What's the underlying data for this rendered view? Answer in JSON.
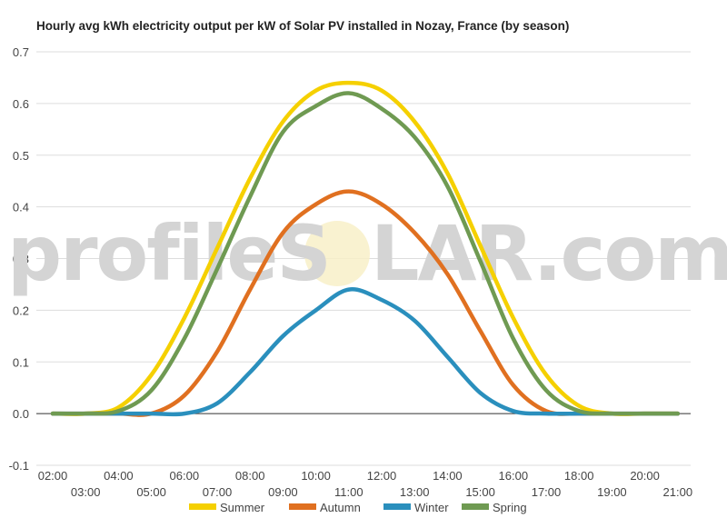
{
  "chart_data": {
    "type": "line",
    "title": "Hourly avg kWh electricity output per kW of Solar PV installed in Nozay, France (by season)",
    "watermark": {
      "left": "profileS",
      "right": "LAR.com"
    },
    "xlabel": "",
    "ylabel": "",
    "ylim": [
      -0.1,
      0.7
    ],
    "yticks": [
      "-0.1",
      "0.0",
      "0.1",
      "0.2",
      "0.3",
      "0.4",
      "0.5",
      "0.6",
      "0.7"
    ],
    "x_tick_labels": [
      "02:00",
      "03:00",
      "04:00",
      "05:00",
      "06:00",
      "07:00",
      "08:00",
      "09:00",
      "10:00",
      "11:00",
      "12:00",
      "13:00",
      "14:00",
      "15:00",
      "16:00",
      "17:00",
      "18:00",
      "19:00",
      "20:00",
      "21:00"
    ],
    "grid": true,
    "legend_position": "bottom",
    "series": [
      {
        "name": "Summer",
        "color": "#f5d000",
        "values": [
          0,
          0,
          0.012,
          0.075,
          0.185,
          0.32,
          0.455,
          0.565,
          0.625,
          0.64,
          0.625,
          0.565,
          0.465,
          0.325,
          0.185,
          0.075,
          0.015,
          0,
          0,
          0
        ]
      },
      {
        "name": "Autumn",
        "color": "#e07020",
        "values": [
          0,
          0,
          0,
          0,
          0.035,
          0.12,
          0.24,
          0.35,
          0.405,
          0.43,
          0.405,
          0.35,
          0.27,
          0.16,
          0.055,
          0.005,
          0,
          0,
          0,
          0
        ]
      },
      {
        "name": "Winter",
        "color": "#2a8fbd",
        "values": [
          0,
          0,
          0,
          0,
          0,
          0.02,
          0.08,
          0.15,
          0.2,
          0.24,
          0.22,
          0.18,
          0.11,
          0.04,
          0.005,
          0,
          0,
          0,
          0,
          0
        ]
      },
      {
        "name": "Spring",
        "color": "#6f9a52",
        "values": [
          0,
          0,
          0.005,
          0.045,
          0.145,
          0.28,
          0.42,
          0.545,
          0.595,
          0.62,
          0.59,
          0.535,
          0.44,
          0.295,
          0.145,
          0.045,
          0.005,
          0,
          0,
          0
        ]
      }
    ]
  }
}
